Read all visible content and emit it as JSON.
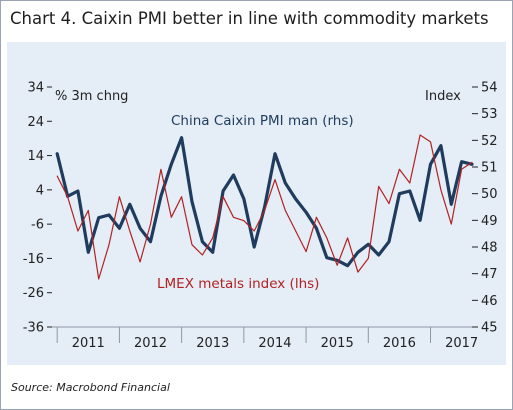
{
  "chart_title": "Chart 4. Caixin PMI better in line with commodity markets",
  "source": "Source: Macrobond Financial",
  "colors": {
    "background": "#e5edf6",
    "pmi_line": "#1f3b5e",
    "lmex_line": "#b22222",
    "axis_text": "#222222"
  },
  "chart_data": {
    "type": "line",
    "x_ticks": [
      "2011",
      "2012",
      "2013",
      "2014",
      "2015",
      "2016",
      "2017"
    ],
    "x_range": [
      "2010-12",
      "2017-09"
    ],
    "left_axis": {
      "label": "% 3m chng",
      "range": [
        -36,
        34
      ],
      "ticks": [
        34,
        24,
        14,
        4,
        -6,
        -16,
        -26,
        -36
      ]
    },
    "right_axis": {
      "label": "Index",
      "range": [
        45,
        54
      ],
      "ticks": [
        54,
        53,
        52,
        51,
        50,
        49,
        48,
        47,
        46,
        45
      ]
    },
    "annotations": [
      "China Caixin PMI man (rhs)",
      "LMEX metals index (lhs)"
    ],
    "grid": false,
    "series": [
      {
        "name": "China Caixin PMI man (rhs)",
        "axis": "right",
        "x": [
          "2011-01",
          "2011-03",
          "2011-05",
          "2011-07",
          "2011-09",
          "2011-11",
          "2012-01",
          "2012-03",
          "2012-05",
          "2012-07",
          "2012-09",
          "2012-11",
          "2013-01",
          "2013-03",
          "2013-05",
          "2013-07",
          "2013-09",
          "2013-11",
          "2014-01",
          "2014-03",
          "2014-05",
          "2014-07",
          "2014-09",
          "2014-11",
          "2015-01",
          "2015-03",
          "2015-05",
          "2015-07",
          "2015-09",
          "2015-11",
          "2016-01",
          "2016-03",
          "2016-05",
          "2016-07",
          "2016-09",
          "2016-11",
          "2017-01",
          "2017-03",
          "2017-05",
          "2017-07",
          "2017-09"
        ],
        "values": [
          51.5,
          49.9,
          50.1,
          47.8,
          49.1,
          49.2,
          48.7,
          49.6,
          48.7,
          48.2,
          49.9,
          51.1,
          52.1,
          49.7,
          48.2,
          47.8,
          50.1,
          50.7,
          49.8,
          48.0,
          49.5,
          51.5,
          50.4,
          49.8,
          49.3,
          48.7,
          47.6,
          47.5,
          47.3,
          47.8,
          48.1,
          47.7,
          48.2,
          50.0,
          50.1,
          49.0,
          51.1,
          51.8,
          49.6,
          51.2,
          51.1
        ]
      },
      {
        "name": "LMEX metals index (lhs)",
        "axis": "left",
        "x": [
          "2011-01",
          "2011-03",
          "2011-05",
          "2011-07",
          "2011-09",
          "2011-11",
          "2012-01",
          "2012-03",
          "2012-05",
          "2012-07",
          "2012-09",
          "2012-11",
          "2013-01",
          "2013-03",
          "2013-05",
          "2013-07",
          "2013-09",
          "2013-11",
          "2014-01",
          "2014-03",
          "2014-05",
          "2014-07",
          "2014-09",
          "2014-11",
          "2015-01",
          "2015-03",
          "2015-05",
          "2015-07",
          "2015-09",
          "2015-11",
          "2016-01",
          "2016-03",
          "2016-05",
          "2016-07",
          "2016-09",
          "2016-11",
          "2017-01",
          "2017-03",
          "2017-05",
          "2017-07",
          "2017-09"
        ],
        "values": [
          8,
          2,
          -8,
          -2,
          -22,
          -12,
          2,
          -8,
          -17,
          -6,
          10,
          -4,
          2,
          -12,
          -15,
          -10,
          2,
          -4,
          -5,
          -8,
          -2,
          7,
          -2,
          -8,
          -14,
          -4,
          -10,
          -18,
          -10,
          -20,
          -16,
          5,
          0,
          10,
          6,
          20,
          18,
          4,
          -6,
          10,
          12
        ]
      }
    ]
  }
}
